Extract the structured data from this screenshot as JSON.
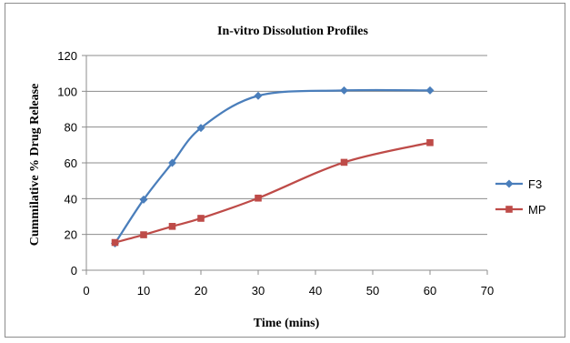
{
  "chart_data": {
    "type": "line",
    "title": "In-vitro Dissolution Profiles",
    "xlabel": "Time (mins)",
    "ylabel": "Cummilative % Drug Release",
    "xlim": [
      0,
      70
    ],
    "ylim": [
      0,
      120
    ],
    "x_ticks": [
      0,
      10,
      20,
      30,
      40,
      50,
      60,
      70
    ],
    "y_ticks": [
      0,
      20,
      40,
      60,
      80,
      100,
      120
    ],
    "grid": "horizontal",
    "legend_position": "right",
    "series": [
      {
        "name": "F3",
        "color": "#4a7ebb",
        "marker": "diamond",
        "smooth": true,
        "x": [
          5,
          10,
          15,
          20,
          30,
          45,
          60
        ],
        "y": [
          15,
          39.5,
          60,
          79.5,
          97.5,
          100.5,
          100.5
        ]
      },
      {
        "name": "MP",
        "color": "#be4b48",
        "marker": "square",
        "smooth": true,
        "x": [
          5,
          10,
          15,
          20,
          30,
          45,
          60
        ],
        "y": [
          15.5,
          19.8,
          24.5,
          29,
          40.3,
          60.3,
          71.3
        ]
      }
    ]
  }
}
